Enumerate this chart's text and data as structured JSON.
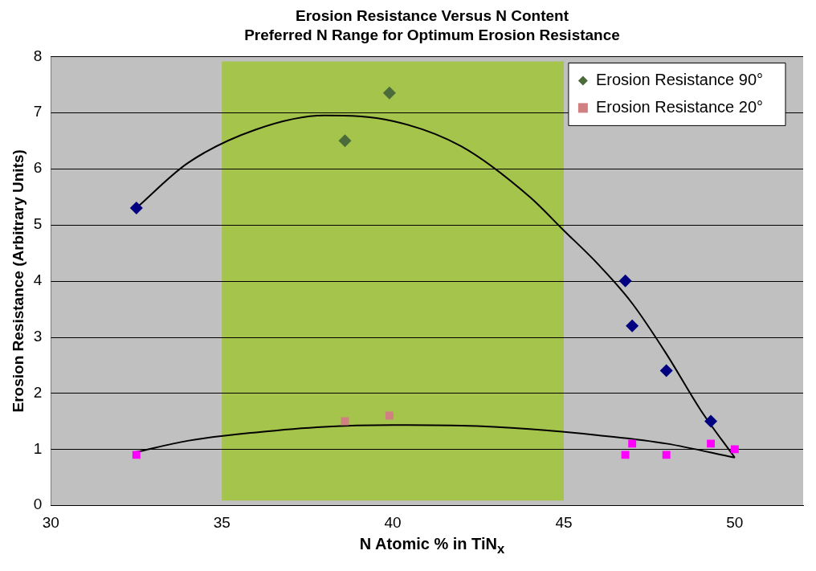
{
  "chart_data": {
    "type": "scatter",
    "title": "Erosion Resistance Versus N Content",
    "subtitle": "Preferred N Range for Optimum Erosion Resistance",
    "xlabel": "N Atomic % in TiN$_{x}$",
    "ylabel": "Erosion Resistance (Arbitrary Units)",
    "xlim": [
      30,
      52
    ],
    "xticks": [
      30,
      35,
      40,
      45,
      50
    ],
    "ylim": [
      0,
      8
    ],
    "yticks": [
      0,
      1,
      2,
      3,
      4,
      5,
      6,
      7,
      8
    ],
    "grid": "y",
    "legend": "top right",
    "bands": [
      {
        "axis": "x",
        "from": 35,
        "to": 45,
        "color": "#a4c44c"
      }
    ],
    "series": [
      {
        "name": "Erosion Resistance 90°",
        "type": "scatter",
        "marker": "diamond",
        "color": "#4b6b3a",
        "colors": [
          "#000080",
          "#4b6b3a",
          "#4b6b3a",
          "#000080",
          "#000080",
          "#000080",
          "#000080"
        ],
        "x": [
          32.5,
          38.6,
          39.9,
          46.8,
          47,
          48,
          49.3
        ],
        "values": [
          5.3,
          6.5,
          7.35,
          4.0,
          3.2,
          2.4,
          1.5
        ]
      },
      {
        "name": "Erosion Resistance 20°",
        "type": "scatter",
        "marker": "square",
        "color": "#d08080",
        "colors": [
          "#ff00ff",
          "#d08080",
          "#d08080",
          "#ff00ff",
          "#ff00ff",
          "#ff00ff",
          "#ff00ff",
          "#ff00ff"
        ],
        "x": [
          32.5,
          38.6,
          39.9,
          46.8,
          47,
          48,
          49.3,
          50
        ],
        "values": [
          0.9,
          1.5,
          1.6,
          0.9,
          1.1,
          0.9,
          1.1,
          1.0
        ]
      },
      {
        "type": "line",
        "marker": "none",
        "color": "#000000",
        "x": [
          32.5,
          34,
          36,
          38,
          40,
          42,
          44,
          45,
          46,
          47,
          48,
          49,
          50
        ],
        "values": [
          5.3,
          6.1,
          6.7,
          6.95,
          6.85,
          6.4,
          5.5,
          4.9,
          4.3,
          3.6,
          2.7,
          1.7,
          0.85
        ]
      },
      {
        "type": "line",
        "marker": "none",
        "color": "#000000",
        "x": [
          32.5,
          34,
          36,
          38,
          40,
          42,
          44,
          46,
          48,
          50
        ],
        "values": [
          0.95,
          1.15,
          1.3,
          1.4,
          1.43,
          1.42,
          1.36,
          1.25,
          1.1,
          0.85
        ]
      }
    ]
  }
}
